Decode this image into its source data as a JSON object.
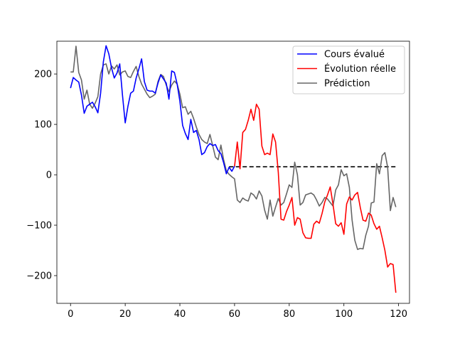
{
  "chart_data": {
    "type": "line",
    "xlim": [
      -5,
      124
    ],
    "ylim": [
      -255,
      265
    ],
    "xticks": [
      0,
      20,
      40,
      60,
      80,
      100,
      120
    ],
    "yticks": [
      -200,
      -100,
      0,
      100,
      200
    ],
    "grid": false,
    "legend_position": "top-right",
    "series": [
      {
        "name": "Cours évalué",
        "color": "#0000ff",
        "x": [
          0,
          1,
          2,
          3,
          4,
          5,
          6,
          7,
          8,
          9,
          10,
          11,
          12,
          13,
          14,
          15,
          16,
          17,
          18,
          19,
          20,
          21,
          22,
          23,
          24,
          25,
          26,
          27,
          28,
          29,
          30,
          31,
          32,
          33,
          34,
          35,
          36,
          37,
          38,
          39,
          40,
          41,
          42,
          43,
          44,
          45,
          46,
          47,
          48,
          49,
          50,
          51,
          52,
          53,
          54,
          55,
          56,
          57,
          58,
          59,
          60
        ],
        "y": [
          172,
          193,
          188,
          184,
          158,
          122,
          136,
          140,
          144,
          135,
          123,
          162,
          224,
          256,
          240,
          212,
          192,
          202,
          220,
          158,
          103,
          136,
          162,
          166,
          192,
          210,
          230,
          185,
          168,
          166,
          166,
          162,
          182,
          198,
          190,
          182,
          150,
          206,
          203,
          180,
          146,
          98,
          82,
          70,
          110,
          84,
          88,
          70,
          40,
          44,
          56,
          62,
          58,
          60,
          48,
          42,
          24,
          2,
          15,
          7,
          17
        ]
      },
      {
        "name": "Évolution réelle",
        "color": "#ff0000",
        "x": [
          60,
          61,
          62,
          63,
          64,
          65,
          66,
          67,
          68,
          69,
          70,
          71,
          72,
          73,
          74,
          75,
          76,
          77,
          78,
          79,
          80,
          81,
          82,
          83,
          84,
          85,
          86,
          87,
          88,
          89,
          90,
          91,
          92,
          93,
          94,
          95,
          96,
          97,
          98,
          99,
          100,
          101,
          102,
          103,
          104,
          105,
          106,
          107,
          108,
          109,
          110,
          111,
          112,
          113,
          114,
          115,
          116,
          117,
          118,
          119
        ],
        "y": [
          17,
          65,
          12,
          84,
          90,
          108,
          130,
          108,
          140,
          130,
          57,
          40,
          43,
          40,
          81,
          65,
          5,
          -88,
          -90,
          -73,
          -60,
          -45,
          -100,
          -85,
          -88,
          -115,
          -125,
          -126,
          -126,
          -98,
          -92,
          -96,
          -77,
          -54,
          -40,
          -24,
          -58,
          -97,
          -102,
          -95,
          -118,
          -58,
          -44,
          -50,
          -40,
          -35,
          -65,
          -90,
          -92,
          -76,
          -80,
          -97,
          -108,
          -102,
          -125,
          -150,
          -183,
          -176,
          -178,
          -234
        ]
      },
      {
        "name": "Prédiction",
        "color": "#666666",
        "x": [
          0,
          1,
          2,
          3,
          4,
          5,
          6,
          7,
          8,
          9,
          10,
          11,
          12,
          13,
          14,
          15,
          16,
          17,
          18,
          19,
          20,
          21,
          22,
          23,
          24,
          25,
          26,
          27,
          28,
          29,
          30,
          31,
          32,
          33,
          34,
          35,
          36,
          37,
          38,
          39,
          40,
          41,
          42,
          43,
          44,
          45,
          46,
          47,
          48,
          49,
          50,
          51,
          52,
          53,
          54,
          55,
          56,
          57,
          58,
          59,
          60,
          61,
          62,
          63,
          64,
          65,
          66,
          67,
          68,
          69,
          70,
          71,
          72,
          73,
          74,
          75,
          76,
          77,
          78,
          79,
          80,
          81,
          82,
          83,
          84,
          85,
          86,
          87,
          88,
          89,
          90,
          91,
          92,
          93,
          94,
          95,
          96,
          97,
          98,
          99,
          100,
          101,
          102,
          103,
          104,
          105,
          106,
          107,
          108,
          109,
          110,
          111,
          112,
          113,
          114,
          115,
          116,
          117,
          118,
          119
        ],
        "y": [
          204,
          204,
          255,
          203,
          188,
          150,
          168,
          140,
          132,
          142,
          155,
          200,
          218,
          220,
          200,
          216,
          210,
          218,
          198,
          204,
          206,
          195,
          193,
          205,
          215,
          195,
          180,
          170,
          160,
          153,
          156,
          160,
          185,
          199,
          195,
          178,
          165,
          178,
          186,
          180,
          160,
          133,
          135,
          120,
          126,
          112,
          95,
          80,
          70,
          65,
          62,
          80,
          58,
          35,
          30,
          59,
          30,
          8,
          1,
          -4,
          -8,
          -50,
          -55,
          -46,
          -50,
          -52,
          -36,
          -40,
          -48,
          -32,
          -42,
          -70,
          -88,
          -50,
          -82,
          -64,
          -47,
          -60,
          -55,
          -38,
          -20,
          -25,
          25,
          0,
          -60,
          -55,
          -40,
          -38,
          -36,
          -40,
          -50,
          -62,
          -55,
          -45,
          -48,
          -55,
          -62,
          -30,
          -20,
          10,
          -2,
          2,
          -25,
          -90,
          -130,
          -148,
          -146,
          -147,
          -120,
          -102,
          -56,
          -54,
          22,
          2,
          38,
          44,
          15,
          -71,
          -45,
          -64
        ]
      }
    ],
    "reference_line": {
      "y": 16,
      "x_from": 58,
      "x_to": 119,
      "color": "#000000",
      "style": "dashed"
    }
  }
}
